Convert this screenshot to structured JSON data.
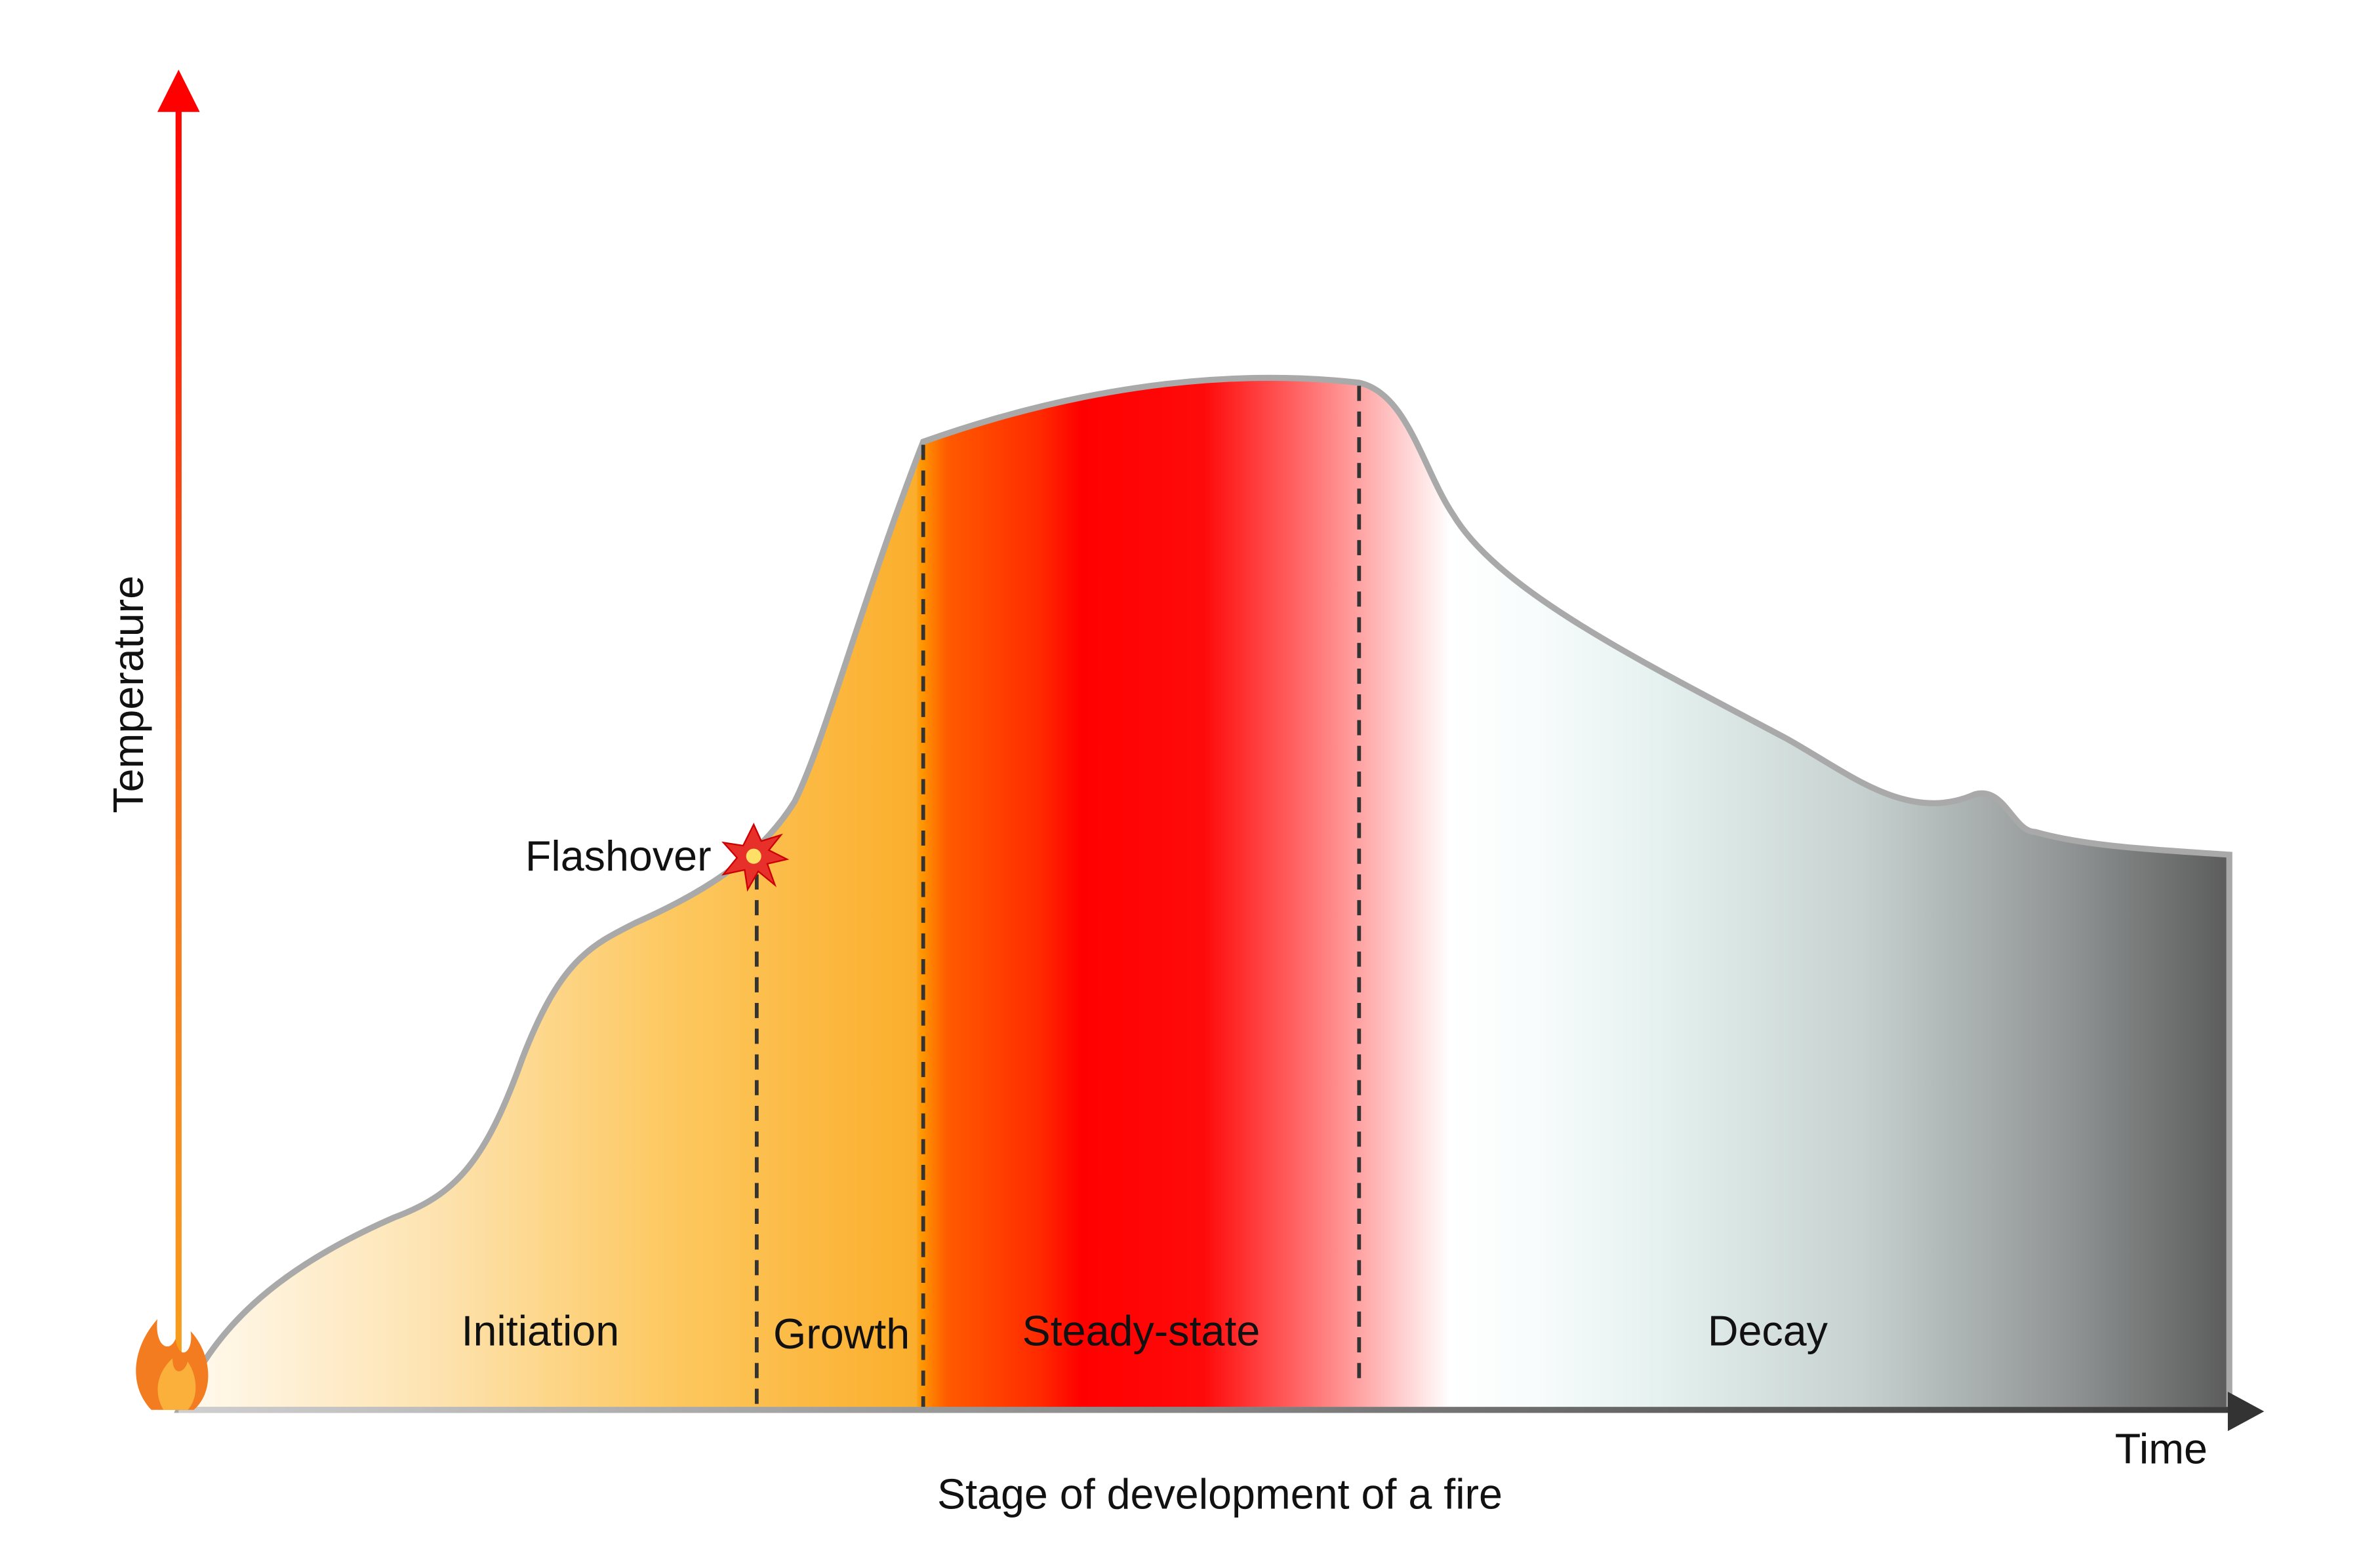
{
  "axes": {
    "y_label": "Temperature",
    "x_label": "Time",
    "caption": "Stage of development of a fire"
  },
  "annotation": "Flashover",
  "stages": [
    "Initiation",
    "Growth",
    "Steady-state",
    "Decay"
  ]
}
